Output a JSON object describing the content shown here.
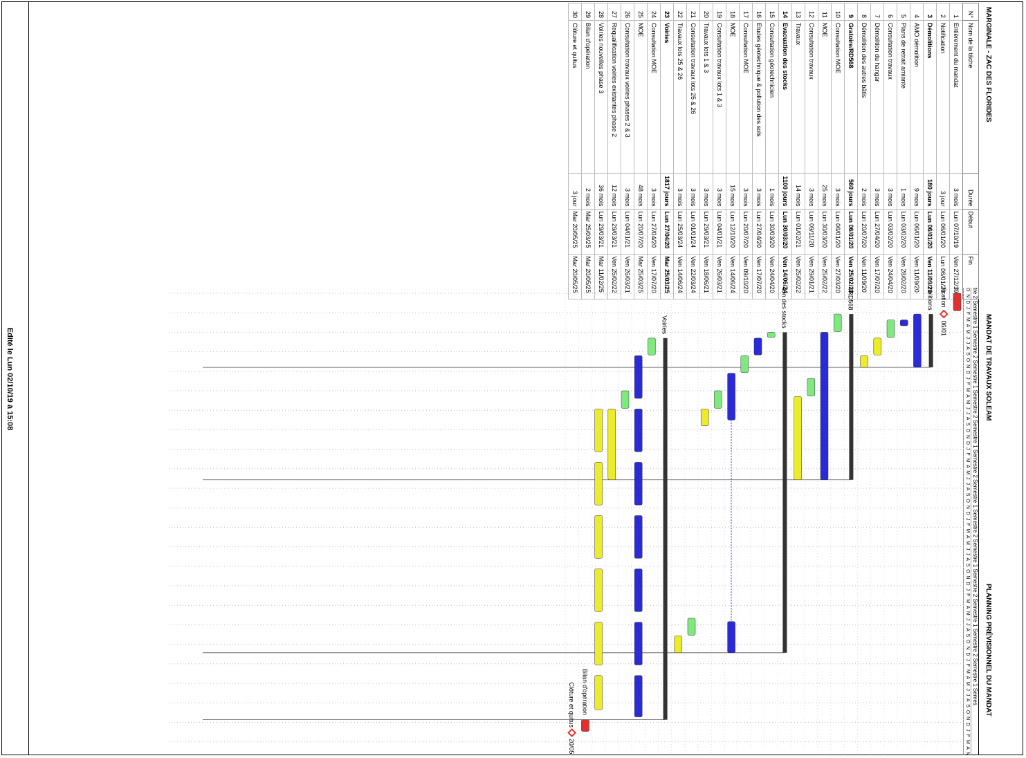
{
  "project": {
    "left_title": "MARGINALE - ZAC DES FLORIDES",
    "center_title": "MANDAT DE TRAVAUX SOLEAM",
    "right_title": "PLANNING PRÉVISIONNEL DU MANDAT",
    "edited_text": "Edité le Lun 02/10/19 à 15:08"
  },
  "columns": {
    "id": "N°",
    "name": "Nom de la tâche",
    "duration": "Durée",
    "start": "Début",
    "end": "Fin"
  },
  "timescale_header": "tre 2 Semestre 1 Semestre 2 Semestre 1 Semestre 2 Semestre 1 Semestre 2 Semestre 1 Semestre 2 Semestre 1 Semestre 2 Semestre 1 Semestre 2 Semestre 1 Semes",
  "timescale_months": "O N D J F M A M J J A S O N D J F M A M J J A S O N D J F M A M J J A S O N D J F M A M J J A S O N D J F M A M J J A S O N D J F M A M J J A S O N D J F M A M J J A S",
  "colors": {
    "blue": "#2a2ad8",
    "green": "#7fe87f",
    "yellow": "#ecec2a",
    "red": "#e03030",
    "summary": "#333333"
  },
  "tasks": [
    {
      "id": "1",
      "name": "Entièrement du mandat",
      "duration": "3 mois",
      "start": "Lun 07/10/19",
      "end": "Ven 27/12/19",
      "summary": false
    },
    {
      "id": "2",
      "name": "Notification",
      "duration": "3 jour",
      "start": "Lun 06/01/20",
      "end": "Lun 06/01/20",
      "summary": false
    },
    {
      "id": "3",
      "name": "Démolitions",
      "duration": "180 jours",
      "start": "Lun 06/01/20",
      "end": "Ven 11/09/20",
      "summary": true
    },
    {
      "id": "4",
      "name": "AMO démolition",
      "duration": "9 mois",
      "start": "Lun 06/01/20",
      "end": "Ven 11/09/20",
      "summary": false
    },
    {
      "id": "5",
      "name": "Plans de retrait amiante",
      "duration": "1 mois",
      "start": "Lun 03/02/20",
      "end": "Ven 28/02/20",
      "summary": false
    },
    {
      "id": "6",
      "name": "Consultation travaux",
      "duration": "3 mois",
      "start": "Lun 03/02/20",
      "end": "Ven 24/04/20",
      "summary": false
    },
    {
      "id": "7",
      "name": "Démolition du hangar",
      "duration": "3 mois",
      "start": "Lun 27/04/20",
      "end": "Ven 17/07/20",
      "summary": false
    },
    {
      "id": "8",
      "name": "Démolition des autres bâtis",
      "duration": "2 mois",
      "start": "Lun 20/07/20",
      "end": "Ven 11/09/20",
      "summary": false
    },
    {
      "id": "9",
      "name": "Gratoire/RD568",
      "duration": "560 jours",
      "start": "Lun 06/01/20",
      "end": "Ven 25/02/22",
      "summary": true
    },
    {
      "id": "10",
      "name": "Consultation MOE",
      "duration": "3 mois",
      "start": "Lun 06/01/20",
      "end": "Ven 27/03/20",
      "summary": false
    },
    {
      "id": "11",
      "name": "MOE",
      "duration": "25 mois",
      "start": "Lun 30/03/20",
      "end": "Ven 25/02/22",
      "summary": false
    },
    {
      "id": "12",
      "name": "Consultation travaux",
      "duration": "3 mois",
      "start": "Lun 09/11/20",
      "end": "Ven 29/01/21",
      "summary": false
    },
    {
      "id": "13",
      "name": "Travaux",
      "duration": "14 mois",
      "start": "Lun 01/02/21",
      "end": "Ven 25/02/22",
      "summary": false
    },
    {
      "id": "14",
      "name": "Evacuation des stocks",
      "duration": "1100 jours",
      "start": "Lun 30/03/20",
      "end": "Ven 14/06/24",
      "summary": true
    },
    {
      "id": "15",
      "name": "Consultation géotechnicien",
      "duration": "1 mois",
      "start": "Lun 30/03/20",
      "end": "Ven 24/04/20",
      "summary": false
    },
    {
      "id": "16",
      "name": "Etudes géotechnique & pollution des sols",
      "duration": "3 mois",
      "start": "Lun 27/04/20",
      "end": "Ven 17/07/20",
      "summary": false
    },
    {
      "id": "17",
      "name": "Consultation MOE",
      "duration": "3 mois",
      "start": "Lun 20/07/20",
      "end": "Ven 09/10/20",
      "summary": false
    },
    {
      "id": "18",
      "name": "MOE",
      "duration": "15 mois",
      "start": "Lun 12/10/20",
      "end": "Ven 14/06/24",
      "summary": false
    },
    {
      "id": "19",
      "name": "Consultation travaux lots 1 & 3",
      "duration": "3 mois",
      "start": "Lun 04/01/21",
      "end": "Ven 26/03/21",
      "summary": false
    },
    {
      "id": "20",
      "name": "Travaux lots 1 & 3",
      "duration": "3 mois",
      "start": "Lun 29/03/21",
      "end": "Ven 18/06/21",
      "summary": false
    },
    {
      "id": "21",
      "name": "Consultation travaux lots 25 & 26",
      "duration": "3 mois",
      "start": "Lun 01/01/24",
      "end": "Ven 22/03/24",
      "summary": false
    },
    {
      "id": "22",
      "name": "Travaux lots 25 & 26",
      "duration": "3 mois",
      "start": "Lun 25/03/24",
      "end": "Ven 14/06/24",
      "summary": false
    },
    {
      "id": "23",
      "name": "Voiries",
      "duration": "1817 jours",
      "start": "Lun 27/04/20",
      "end": "Mar 25/03/25",
      "summary": true
    },
    {
      "id": "24",
      "name": "Consultation MOE",
      "duration": "3 mois",
      "start": "Lun 27/04/20",
      "end": "Ven 17/07/20",
      "summary": false
    },
    {
      "id": "25",
      "name": "MOE",
      "duration": "48 mois",
      "start": "Lun 20/07/20",
      "end": "Mar 25/03/25",
      "summary": false
    },
    {
      "id": "26",
      "name": "Consultation travaux voiries phases 2 & 3",
      "duration": "3 mois",
      "start": "Lun 04/01/21",
      "end": "Ven 26/03/21",
      "summary": false
    },
    {
      "id": "27",
      "name": "Requalification voiries existantes phase 2",
      "duration": "12 mois",
      "start": "Lun 29/03/21",
      "end": "Ven 25/02/22",
      "summary": false
    },
    {
      "id": "28",
      "name": "Voiries nouvelles phase 3",
      "duration": "36 mois",
      "start": "Lun 29/03/21",
      "end": "Mar 11/02/25",
      "summary": false
    },
    {
      "id": "29",
      "name": "Bilan d'opération",
      "duration": "2 mois",
      "start": "Mar 25/03/25",
      "end": "Mar 20/05/25",
      "summary": false
    },
    {
      "id": "30",
      "name": "Clôture et quitus",
      "duration": "3 jour",
      "start": "Mar 20/05/25",
      "end": "Mar 20/05/25",
      "summary": false
    }
  ],
  "bar_labels": {
    "t1": "Entièrement du mandat",
    "t2": "Notification",
    "t2_date": "06/01",
    "t3": "Démolitions",
    "t9": "Gratoire/RD568",
    "t14": "Evacuation des stocks",
    "t23": "Voiries",
    "t29": "Bilan d'opération",
    "t30": "Clôture et quitus",
    "t30_date": "20/05"
  },
  "bars": [
    {
      "row": 0,
      "from": 0.0,
      "to": 2.7,
      "color": "red",
      "kind": "bar"
    },
    {
      "row": 1,
      "from": 3.2,
      "to": 3.2,
      "color": "red",
      "kind": "milestone"
    },
    {
      "row": 2,
      "from": 3.2,
      "to": 11.4,
      "color": "summary",
      "kind": "summary"
    },
    {
      "row": 3,
      "from": 3.2,
      "to": 11.4,
      "color": "blue",
      "kind": "bar"
    },
    {
      "row": 4,
      "from": 4.1,
      "to": 5.0,
      "color": "blue",
      "kind": "bar"
    },
    {
      "row": 5,
      "from": 4.1,
      "to": 6.8,
      "color": "green",
      "kind": "bar"
    },
    {
      "row": 6,
      "from": 6.9,
      "to": 9.5,
      "color": "yellow",
      "kind": "bar"
    },
    {
      "row": 7,
      "from": 9.6,
      "to": 11.4,
      "color": "yellow",
      "kind": "bar"
    },
    {
      "row": 8,
      "from": 3.2,
      "to": 28.7,
      "color": "summary",
      "kind": "summary"
    },
    {
      "row": 9,
      "from": 3.2,
      "to": 5.9,
      "color": "green",
      "kind": "bar"
    },
    {
      "row": 10,
      "from": 6.0,
      "to": 28.7,
      "color": "blue",
      "kind": "bar"
    },
    {
      "row": 11,
      "from": 13.1,
      "to": 15.8,
      "color": "green",
      "kind": "bar"
    },
    {
      "row": 12,
      "from": 15.9,
      "to": 28.7,
      "color": "yellow",
      "kind": "bar"
    },
    {
      "row": 13,
      "from": 6.0,
      "to": 55.3,
      "color": "summary",
      "kind": "summary"
    },
    {
      "row": 14,
      "from": 6.0,
      "to": 6.8,
      "color": "green",
      "kind": "bar"
    },
    {
      "row": 15,
      "from": 6.9,
      "to": 9.5,
      "color": "blue",
      "kind": "bar"
    },
    {
      "row": 16,
      "from": 9.6,
      "to": 12.2,
      "color": "green",
      "kind": "bar"
    },
    {
      "row": 17,
      "from": 12.3,
      "to": 19.5,
      "color": "blue",
      "kind": "split",
      "split_to": 50.5,
      "split_from2": 50.5,
      "to2": 55.3
    },
    {
      "row": 18,
      "from": 15.0,
      "to": 17.7,
      "color": "green",
      "kind": "bar"
    },
    {
      "row": 19,
      "from": 17.8,
      "to": 20.4,
      "color": "yellow",
      "kind": "bar"
    },
    {
      "row": 20,
      "from": 50.0,
      "to": 52.6,
      "color": "green",
      "kind": "bar"
    },
    {
      "row": 21,
      "from": 52.7,
      "to": 55.3,
      "color": "yellow",
      "kind": "bar"
    },
    {
      "row": 22,
      "from": 6.9,
      "to": 65.6,
      "color": "summary",
      "kind": "summary"
    },
    {
      "row": 23,
      "from": 6.9,
      "to": 9.5,
      "color": "green",
      "kind": "bar"
    },
    {
      "row": 24,
      "from": 9.6,
      "to": 65.6,
      "color": "blue",
      "kind": "segmented"
    },
    {
      "row": 25,
      "from": 15.0,
      "to": 17.7,
      "color": "green",
      "kind": "bar"
    },
    {
      "row": 26,
      "from": 17.8,
      "to": 28.7,
      "color": "yellow",
      "kind": "bar"
    },
    {
      "row": 27,
      "from": 17.8,
      "to": 64.5,
      "color": "yellow",
      "kind": "segmented"
    },
    {
      "row": 28,
      "from": 65.6,
      "to": 67.4,
      "color": "red",
      "kind": "bar"
    },
    {
      "row": 29,
      "from": 67.6,
      "to": 67.6,
      "color": "red",
      "kind": "milestone"
    }
  ]
}
